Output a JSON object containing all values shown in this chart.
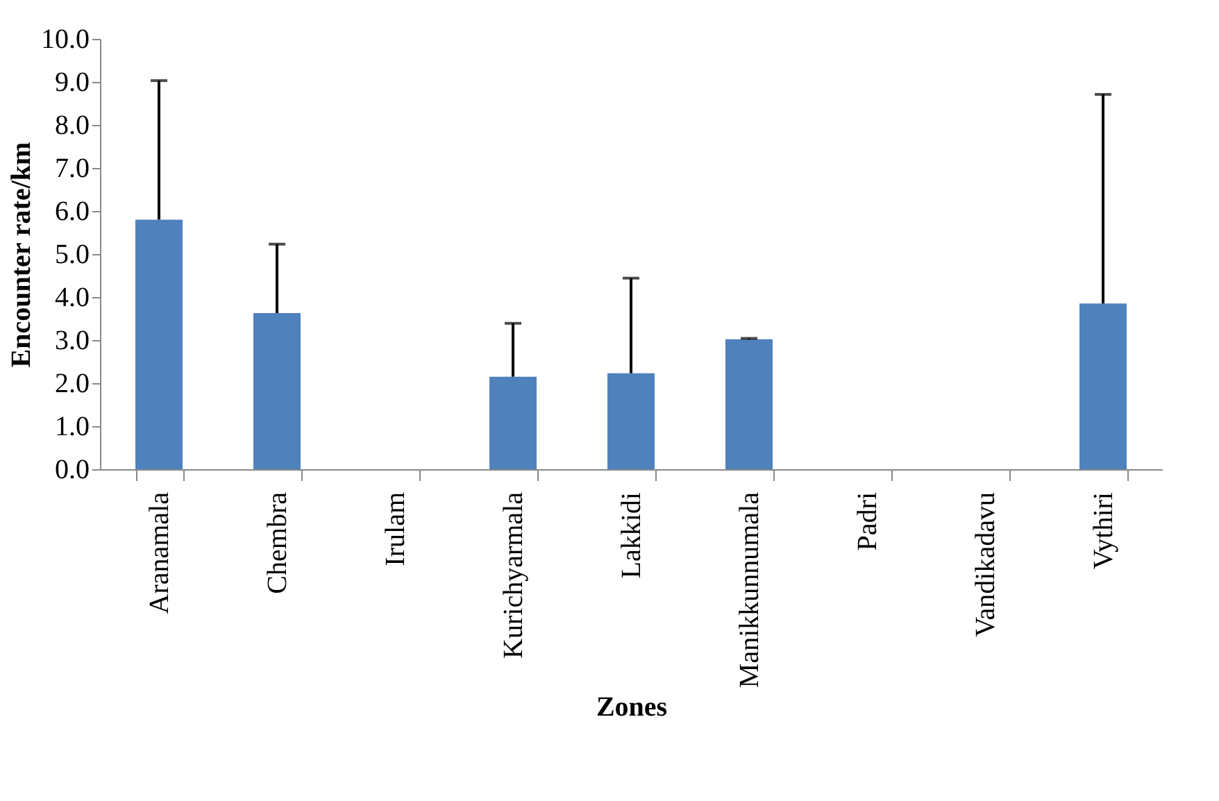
{
  "chart_data": {
    "type": "bar",
    "xlabel": "Zones",
    "ylabel": "Encounter rate/km",
    "categories": [
      "Aranamala",
      "Chembra",
      "Irulam",
      "Kurichyarmala",
      "Lakkidi",
      "Manikkunnumala",
      "Padri",
      "Vandikadavu",
      "Vythiri"
    ],
    "values": [
      5.8,
      3.63,
      0,
      2.15,
      2.23,
      3.02,
      0,
      0,
      3.85
    ],
    "errors": [
      [
        5.8,
        9.03
      ],
      [
        3.63,
        5.23
      ],
      null,
      [
        2.15,
        3.39
      ],
      [
        2.23,
        4.44
      ],
      [
        3.02,
        3.04
      ],
      null,
      null,
      [
        3.85,
        8.71
      ]
    ],
    "color": "#4f81bd",
    "ylim": [
      0,
      10
    ],
    "yticks": [
      {
        "value": 0,
        "label": "0.0"
      },
      {
        "value": 1,
        "label": "1.0"
      },
      {
        "value": 2,
        "label": "2.0"
      },
      {
        "value": 3,
        "label": "3.0"
      },
      {
        "value": 4,
        "label": "4.0"
      },
      {
        "value": 5,
        "label": "5.0"
      },
      {
        "value": 6,
        "label": "6.0"
      },
      {
        "value": 7,
        "label": "7.0"
      },
      {
        "value": 8,
        "label": "8.0"
      },
      {
        "value": 9,
        "label": "9.0"
      },
      {
        "value": 10,
        "label": "10.0"
      }
    ],
    "grid": false
  }
}
